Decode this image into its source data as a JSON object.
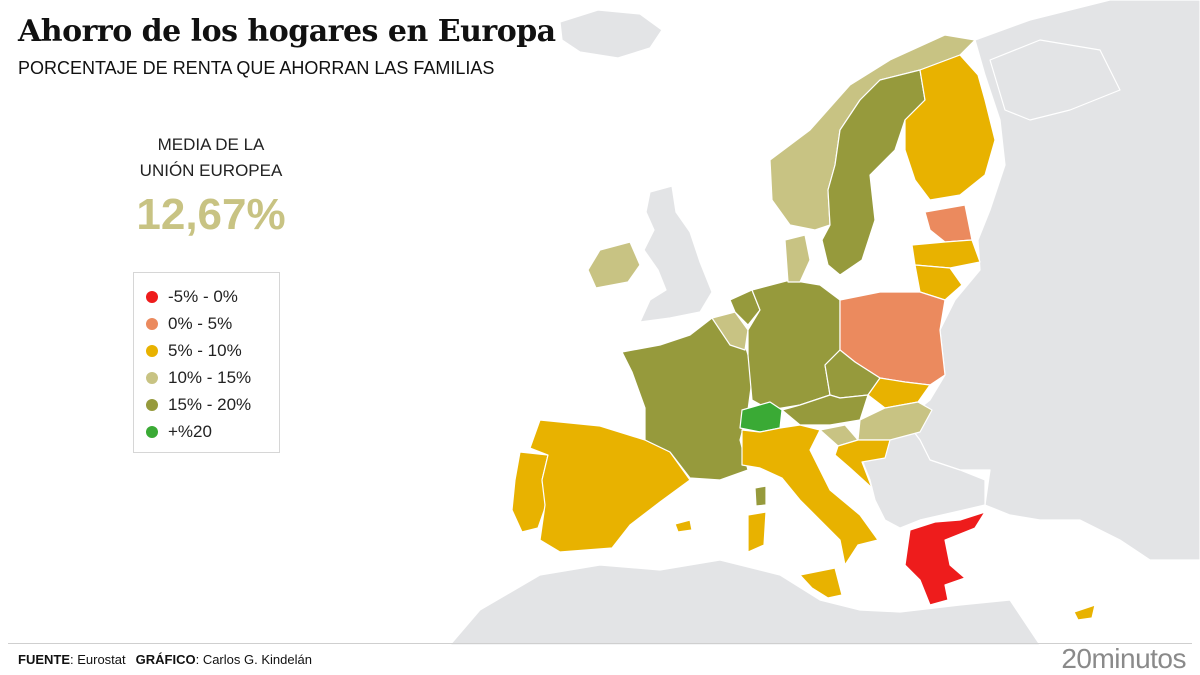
{
  "header": {
    "title": "Ahorro de los hogares en Europa",
    "subtitle": "PORCENTAJE DE RENTA QUE AHORRAN LAS FAMILIAS"
  },
  "average": {
    "label_line1": "MEDIA DE LA",
    "label_line2": "UNIÓN EUROPEA",
    "value": "12,67%"
  },
  "legend": [
    {
      "label": "-5% - 0%",
      "color": "#ee1c1c"
    },
    {
      "label": "0% - 5%",
      "color": "#eb8a5e"
    },
    {
      "label": "5% - 10%",
      "color": "#e8b200"
    },
    {
      "label": "10% - 15%",
      "color": "#c8c383"
    },
    {
      "label": "15% - 20%",
      "color": "#969a3c"
    },
    {
      "label": "+%20",
      "color": "#3aaa35"
    }
  ],
  "footer": {
    "source_label": "FUENTE",
    "source_value": ": Eurostat",
    "graphic_label": "GRÁFICO",
    "graphic_value": ": Carlos G. Kindelán",
    "brand": "20minutos"
  },
  "map": {
    "base_color": "#e3e4e6",
    "border_color": "#ffffff",
    "countries": [
      {
        "name": "Spain",
        "class": "5% - 10%",
        "color": "#e8b200"
      },
      {
        "name": "Portugal",
        "class": "5% - 10%",
        "color": "#e8b200"
      },
      {
        "name": "France",
        "class": "15% - 20%",
        "color": "#969a3c"
      },
      {
        "name": "Ireland",
        "class": "10% - 15%",
        "color": "#c8c383"
      },
      {
        "name": "Belgium",
        "class": "10% - 15%",
        "color": "#c8c383"
      },
      {
        "name": "Netherlands",
        "class": "15% - 20%",
        "color": "#969a3c"
      },
      {
        "name": "Germany",
        "class": "15% - 20%",
        "color": "#969a3c"
      },
      {
        "name": "Denmark",
        "class": "10% - 15%",
        "color": "#c8c383"
      },
      {
        "name": "Norway",
        "class": "10% - 15%",
        "color": "#c8c383"
      },
      {
        "name": "Sweden",
        "class": "15% - 20%",
        "color": "#969a3c"
      },
      {
        "name": "Finland",
        "class": "5% - 10%",
        "color": "#e8b200"
      },
      {
        "name": "Estonia",
        "class": "0% - 5%",
        "color": "#eb8a5e"
      },
      {
        "name": "Latvia",
        "class": "5% - 10%",
        "color": "#e8b200"
      },
      {
        "name": "Lithuania",
        "class": "5% - 10%",
        "color": "#e8b200"
      },
      {
        "name": "Poland",
        "class": "0% - 5%",
        "color": "#eb8a5e"
      },
      {
        "name": "Czechia",
        "class": "15% - 20%",
        "color": "#969a3c"
      },
      {
        "name": "Slovakia",
        "class": "5% - 10%",
        "color": "#e8b200"
      },
      {
        "name": "Austria",
        "class": "15% - 20%",
        "color": "#969a3c"
      },
      {
        "name": "Hungary",
        "class": "10% - 15%",
        "color": "#c8c383"
      },
      {
        "name": "Slovenia",
        "class": "10% - 15%",
        "color": "#c8c383"
      },
      {
        "name": "Croatia",
        "class": "5% - 10%",
        "color": "#e8b200"
      },
      {
        "name": "Switzerland",
        "class": "+%20",
        "color": "#3aaa35"
      },
      {
        "name": "Italy",
        "class": "5% - 10%",
        "color": "#e8b200"
      },
      {
        "name": "Greece",
        "class": "-5% - 0%",
        "color": "#ee1c1c"
      },
      {
        "name": "Cyprus",
        "class": "5% - 10%",
        "color": "#e8b200"
      }
    ]
  }
}
